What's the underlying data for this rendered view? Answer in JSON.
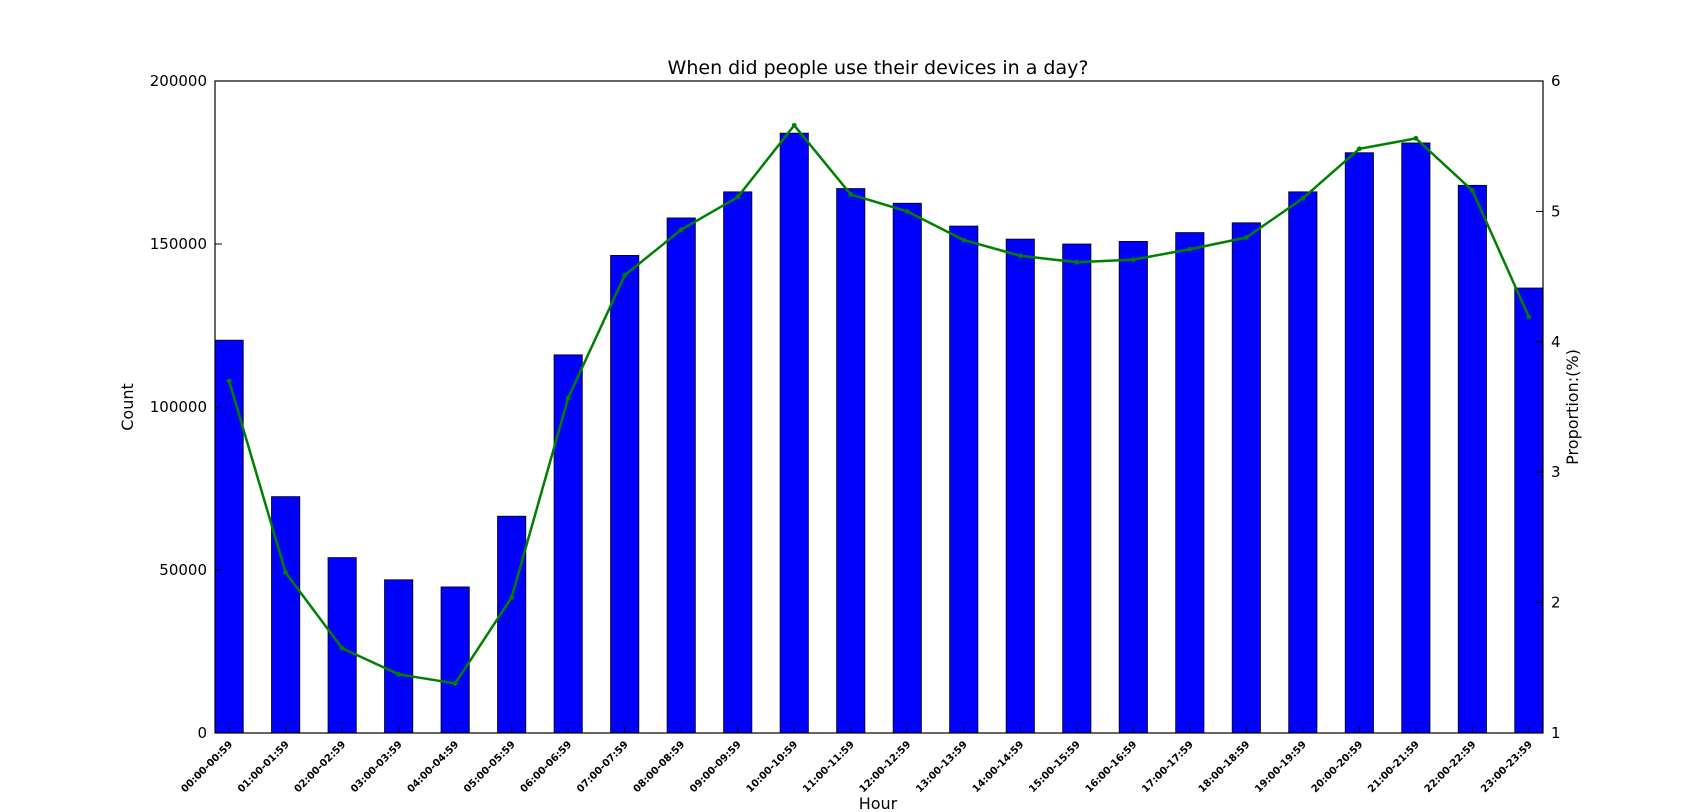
{
  "chart_data": {
    "type": "bar",
    "title": "When did people use their devices in a day?",
    "xlabel": "Hour",
    "ylabel": "Count",
    "y2label": "Proportion:(%)",
    "ylim": [
      0,
      200000
    ],
    "y2lim": [
      1,
      6
    ],
    "yticks": [
      "0",
      "50000",
      "100000",
      "150000",
      "200000"
    ],
    "y2ticks": [
      "1",
      "2",
      "3",
      "4",
      "5",
      "6"
    ],
    "grid": false,
    "colors": {
      "bars": "#0000ff",
      "line": "#008000"
    },
    "categories": [
      "00:00-00:59",
      "01:00-01:59",
      "02:00-02:59",
      "03:00-03:59",
      "04:00-04:59",
      "05:00-05:59",
      "06:00-06:59",
      "07:00-07:59",
      "08:00-08:59",
      "09:00-09:59",
      "10:00-10:59",
      "11:00-11:59",
      "12:00-12:59",
      "13:00-13:59",
      "14:00-14:59",
      "15:00-15:59",
      "16:00-16:59",
      "17:00-17:59",
      "18:00-18:59",
      "19:00-19:59",
      "20:00-20:59",
      "21:00-21:59",
      "22:00-22:59",
      "23:00-23:59"
    ],
    "series": [
      {
        "type": "bar",
        "axis": "left",
        "values": [
          120500,
          72500,
          53800,
          47000,
          44800,
          66500,
          116000,
          146500,
          158000,
          166000,
          184000,
          167000,
          162500,
          155500,
          151500,
          150000,
          150800,
          153500,
          156500,
          166000,
          178000,
          181000,
          168000,
          136500
        ]
      },
      {
        "type": "line",
        "axis": "right",
        "values": [
          3.7,
          2.23,
          1.65,
          1.45,
          1.38,
          2.04,
          3.57,
          4.51,
          4.86,
          5.11,
          5.66,
          5.13,
          5.0,
          4.78,
          4.66,
          4.61,
          4.63,
          4.71,
          4.8,
          5.1,
          5.48,
          5.56,
          5.16,
          4.19
        ]
      }
    ]
  }
}
